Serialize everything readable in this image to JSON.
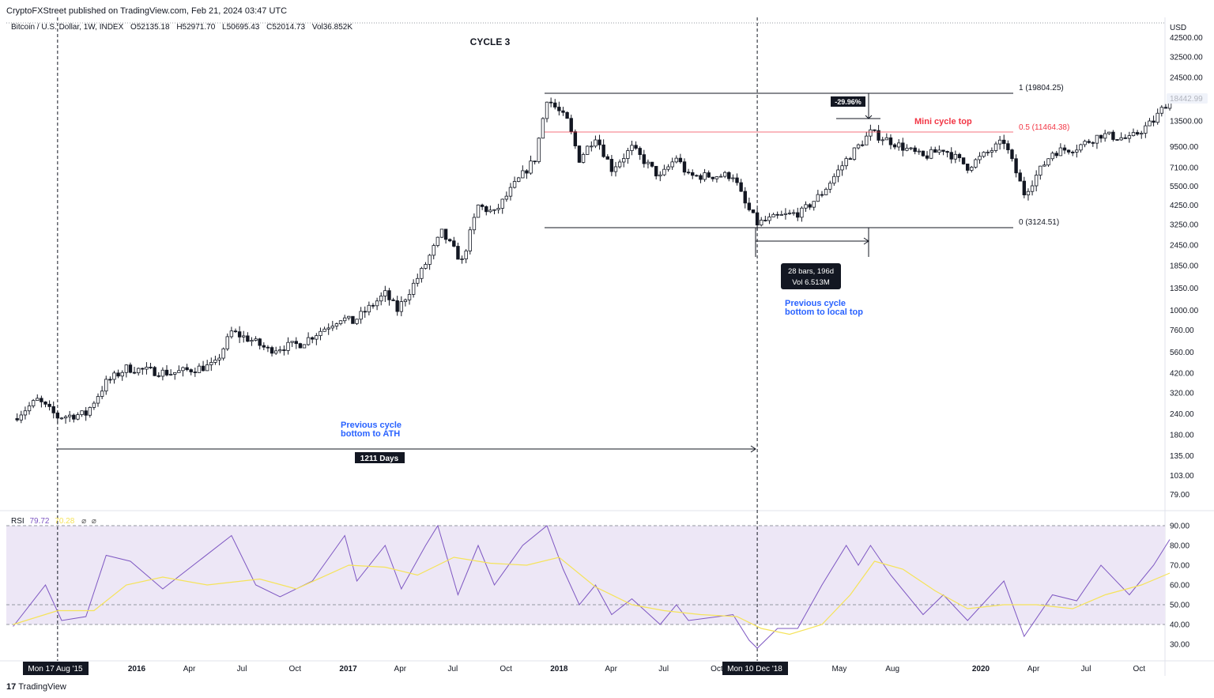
{
  "header": {
    "published": "CryptoFXStreet published on TradingView.com, Feb 21, 2024 03:47 UTC",
    "symbol": "Bitcoin / U.S. Dollar, 1W, INDEX",
    "ohlcv": [
      "O52135.18",
      "H52971.70",
      "L50695.43",
      "C52014.73",
      "Vol36.852K"
    ],
    "currency": "USD"
  },
  "rsi_legend": {
    "name": "RSI",
    "value": "79.72",
    "ma": "70.28",
    "x1": "⌀",
    "x2": "⌀"
  },
  "brand": {
    "logo": "17",
    "name": "TradingView"
  },
  "colors": {
    "rsi": "#7e57c2",
    "rsi_ma": "#f5e35a",
    "fib_mid": "#f23645",
    "annotation_blue": "#2962ff",
    "band": "#ede7f6"
  },
  "annotations": {
    "cycle": "CYCLE 3",
    "fib_1": "1 (19804.25)",
    "fib_05": "0.5 (11464.38)",
    "fib_0": "0 (3124.51)",
    "mini_top": "Mini cycle top",
    "pct": "-29.96%",
    "bars_line1": "28 bars, 196d",
    "bars_line2": "Vol 6.513M",
    "prev_local_1": "Previous cycle",
    "prev_local_2": "bottom to local top",
    "prev_ath_1": "Previous cycle",
    "prev_ath_2": "bottom to ATH",
    "days": "1211 Days",
    "last_price": "18442.99"
  },
  "x_axis": {
    "labels": [
      {
        "t": "2016",
        "bold": true,
        "date": "2016-01-01"
      },
      {
        "t": "Apr",
        "bold": false,
        "date": "2016-04-01"
      },
      {
        "t": "Jul",
        "bold": false,
        "date": "2016-07-01"
      },
      {
        "t": "Oct",
        "bold": false,
        "date": "2016-10-01"
      },
      {
        "t": "2017",
        "bold": true,
        "date": "2017-01-01"
      },
      {
        "t": "Apr",
        "bold": false,
        "date": "2017-04-01"
      },
      {
        "t": "Jul",
        "bold": false,
        "date": "2017-07-01"
      },
      {
        "t": "Oct",
        "bold": false,
        "date": "2017-10-01"
      },
      {
        "t": "2018",
        "bold": true,
        "date": "2018-01-01"
      },
      {
        "t": "Apr",
        "bold": false,
        "date": "2018-04-01"
      },
      {
        "t": "Jul",
        "bold": false,
        "date": "2018-07-01"
      },
      {
        "t": "Oct",
        "bold": false,
        "date": "2018-10-01"
      },
      {
        "t": "May",
        "bold": false,
        "date": "2019-05-01"
      },
      {
        "t": "Aug",
        "bold": false,
        "date": "2019-08-01"
      },
      {
        "t": "2020",
        "bold": true,
        "date": "2020-01-01"
      },
      {
        "t": "Apr",
        "bold": false,
        "date": "2020-04-01"
      },
      {
        "t": "Jul",
        "bold": false,
        "date": "2020-07-01"
      },
      {
        "t": "Oct",
        "bold": false,
        "date": "2020-10-01"
      }
    ],
    "marker_left": {
      "t": "Mon 17 Aug '15",
      "date": "2015-08-17"
    },
    "marker_right": {
      "t": "Mon 10 Dec '18",
      "date": "2018-12-10"
    }
  },
  "chart_data": [
    {
      "type": "candlestick",
      "title": "Bitcoin / U.S. Dollar, 1W",
      "scale": "log",
      "x_range": [
        "2015-06-01",
        "2020-11-23"
      ],
      "y_ticks": [
        79,
        103,
        135,
        180,
        240,
        320,
        420,
        560,
        760,
        1000,
        1350,
        1850,
        2450,
        3250,
        4250,
        5500,
        7100,
        9500,
        13500,
        24500,
        32500,
        42500
      ],
      "y_tick_labels": [
        "79.00",
        "103.00",
        "135.00",
        "180.00",
        "240.00",
        "320.00",
        "420.00",
        "560.00",
        "760.00",
        "1000.00",
        "1350.00",
        "1850.00",
        "2450.00",
        "3250.00",
        "4250.00",
        "5500.00",
        "7100.00",
        "9500.00",
        "13500.00",
        "24500.00",
        "32500.00",
        "42500.00"
      ],
      "price_path": [
        [
          "2015-06-01",
          225
        ],
        [
          "2015-07-13",
          290
        ],
        [
          "2015-08-17",
          230
        ],
        [
          "2015-10-05",
          240
        ],
        [
          "2015-11-09",
          370
        ],
        [
          "2015-12-14",
          450
        ],
        [
          "2016-03-01",
          420
        ],
        [
          "2016-05-15",
          470
        ],
        [
          "2016-06-13",
          740
        ],
        [
          "2016-07-18",
          660
        ],
        [
          "2016-08-15",
          580
        ],
        [
          "2016-10-10",
          630
        ],
        [
          "2016-12-19",
          900
        ],
        [
          "2017-01-09",
          850
        ],
        [
          "2017-03-06",
          1250
        ],
        [
          "2017-03-27",
          1000
        ],
        [
          "2017-05-08",
          1700
        ],
        [
          "2017-06-12",
          2900
        ],
        [
          "2017-07-17",
          1950
        ],
        [
          "2017-08-14",
          4200
        ],
        [
          "2017-09-11",
          3800
        ],
        [
          "2017-10-16",
          5600
        ],
        [
          "2017-11-20",
          8000
        ],
        [
          "2017-12-11",
          18500
        ],
        [
          "2018-01-15",
          13500
        ],
        [
          "2018-02-05",
          8000
        ],
        [
          "2018-03-05",
          11000
        ],
        [
          "2018-04-02",
          7000
        ],
        [
          "2018-05-07",
          9300
        ],
        [
          "2018-06-25",
          6200
        ],
        [
          "2018-07-23",
          8200
        ],
        [
          "2018-08-13",
          6300
        ],
        [
          "2018-10-29",
          6400
        ],
        [
          "2018-11-19",
          4300
        ],
        [
          "2018-12-10",
          3300
        ],
        [
          "2019-01-14",
          3600
        ],
        [
          "2019-02-25",
          3850
        ],
        [
          "2019-04-01",
          5000
        ],
        [
          "2019-05-13",
          7900
        ],
        [
          "2019-06-24",
          11500
        ],
        [
          "2019-07-29",
          10200
        ],
        [
          "2019-09-23",
          8200
        ],
        [
          "2019-10-28",
          9200
        ],
        [
          "2019-12-09",
          7200
        ],
        [
          "2020-02-10",
          10200
        ],
        [
          "2020-03-16",
          5000
        ],
        [
          "2020-05-04",
          8800
        ],
        [
          "2020-06-15",
          9400
        ],
        [
          "2020-07-27",
          11200
        ],
        [
          "2020-09-14",
          10500
        ],
        [
          "2020-10-26",
          13500
        ],
        [
          "2020-11-23",
          18442.99
        ]
      ],
      "fib_levels": [
        {
          "level": 1,
          "price": 19804.25
        },
        {
          "level": 0.5,
          "price": 11464.38
        },
        {
          "level": 0,
          "price": 3124.51
        }
      ]
    },
    {
      "type": "line",
      "title": "RSI",
      "y_ticks": [
        30,
        40,
        50,
        60,
        70,
        80,
        90
      ],
      "y_tick_labels": [
        "30.00",
        "40.00",
        "50.00",
        "60.00",
        "70.00",
        "80.00",
        "90.00"
      ],
      "bands": [
        40,
        50,
        90
      ],
      "series": [
        {
          "name": "RSI",
          "points": [
            [
              "2015-06-01",
              39
            ],
            [
              "2015-07-27",
              60
            ],
            [
              "2015-08-24",
              42
            ],
            [
              "2015-10-05",
              44
            ],
            [
              "2015-11-09",
              75
            ],
            [
              "2015-12-21",
              72
            ],
            [
              "2016-02-15",
              58
            ],
            [
              "2016-06-13",
              85
            ],
            [
              "2016-07-25",
              60
            ],
            [
              "2016-09-05",
              54
            ],
            [
              "2016-10-31",
              62
            ],
            [
              "2016-12-26",
              85
            ],
            [
              "2017-01-16",
              62
            ],
            [
              "2017-03-06",
              80
            ],
            [
              "2017-04-03",
              58
            ],
            [
              "2017-05-15",
              80
            ],
            [
              "2017-06-05",
              90
            ],
            [
              "2017-07-10",
              55
            ],
            [
              "2017-08-14",
              80
            ],
            [
              "2017-09-11",
              60
            ],
            [
              "2017-10-30",
              80
            ],
            [
              "2017-12-11",
              90
            ],
            [
              "2018-01-08",
              68
            ],
            [
              "2018-02-05",
              50
            ],
            [
              "2018-03-05",
              60
            ],
            [
              "2018-04-02",
              45
            ],
            [
              "2018-05-07",
              53
            ],
            [
              "2018-06-25",
              40
            ],
            [
              "2018-07-23",
              50
            ],
            [
              "2018-08-13",
              42
            ],
            [
              "2018-10-29",
              45
            ],
            [
              "2018-11-26",
              32
            ],
            [
              "2018-12-10",
              28
            ],
            [
              "2019-01-14",
              38
            ],
            [
              "2019-02-18",
              38
            ],
            [
              "2019-04-01",
              60
            ],
            [
              "2019-05-13",
              80
            ],
            [
              "2019-06-03",
              70
            ],
            [
              "2019-06-24",
              80
            ],
            [
              "2019-07-29",
              65
            ],
            [
              "2019-09-23",
              45
            ],
            [
              "2019-10-28",
              55
            ],
            [
              "2019-12-09",
              42
            ],
            [
              "2020-02-10",
              62
            ],
            [
              "2020-03-16",
              34
            ],
            [
              "2020-05-04",
              55
            ],
            [
              "2020-06-15",
              52
            ],
            [
              "2020-07-27",
              70
            ],
            [
              "2020-09-14",
              55
            ],
            [
              "2020-10-26",
              70
            ],
            [
              "2020-11-23",
              83
            ]
          ]
        },
        {
          "name": "RSI-based MA",
          "points": [
            [
              "2015-06-01",
              40
            ],
            [
              "2015-08-17",
              47
            ],
            [
              "2015-10-19",
              47
            ],
            [
              "2015-12-14",
              60
            ],
            [
              "2016-02-15",
              64
            ],
            [
              "2016-05-02",
              60
            ],
            [
              "2016-08-01",
              63
            ],
            [
              "2016-10-03",
              58
            ],
            [
              "2017-01-02",
              70
            ],
            [
              "2017-03-06",
              69
            ],
            [
              "2017-05-01",
              65
            ],
            [
              "2017-07-03",
              74
            ],
            [
              "2017-09-04",
              71
            ],
            [
              "2017-11-06",
              70
            ],
            [
              "2018-01-01",
              74
            ],
            [
              "2018-03-05",
              59
            ],
            [
              "2018-05-07",
              50
            ],
            [
              "2018-07-02",
              47
            ],
            [
              "2018-09-03",
              45
            ],
            [
              "2018-11-05",
              44
            ],
            [
              "2018-12-17",
              38
            ],
            [
              "2019-02-04",
              35
            ],
            [
              "2019-04-01",
              40
            ],
            [
              "2019-05-20",
              55
            ],
            [
              "2019-07-01",
              72
            ],
            [
              "2019-08-19",
              68
            ],
            [
              "2019-10-14",
              57
            ],
            [
              "2019-12-09",
              48
            ],
            [
              "2020-02-10",
              50
            ],
            [
              "2020-04-06",
              50
            ],
            [
              "2020-06-08",
              48
            ],
            [
              "2020-08-03",
              55
            ],
            [
              "2020-10-05",
              60
            ],
            [
              "2020-11-23",
              66
            ]
          ]
        }
      ]
    }
  ]
}
